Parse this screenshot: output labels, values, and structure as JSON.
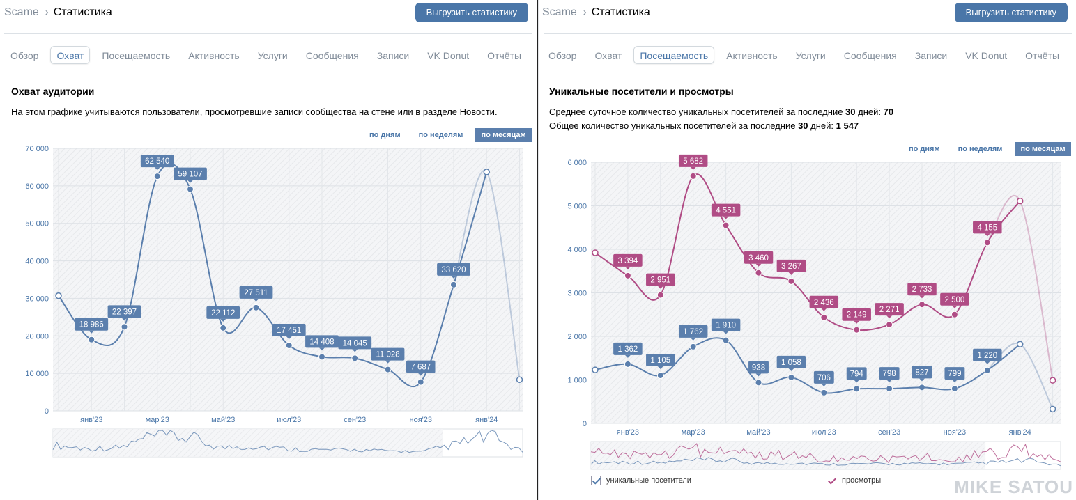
{
  "left": {
    "breadcrumb": {
      "root": "Scame",
      "current": "Статистика"
    },
    "export_label": "Выгрузить статистику",
    "tabs": [
      {
        "label": "Обзор",
        "active": false
      },
      {
        "label": "Охват",
        "active": true
      },
      {
        "label": "Посещаемость",
        "active": false
      },
      {
        "label": "Активность",
        "active": false
      },
      {
        "label": "Услуги",
        "active": false
      },
      {
        "label": "Сообщения",
        "active": false
      },
      {
        "label": "Записи",
        "active": false
      },
      {
        "label": "VK Donut",
        "active": false
      },
      {
        "label": "Отчёты",
        "active": false
      }
    ],
    "section_title": "Охват аудитории",
    "section_desc": "На этом графике учитываются пользователи, просмотревшие записи сообщества на стене или в разделе Новости.",
    "periods": [
      {
        "label": "по дням",
        "active": false
      },
      {
        "label": "по неделям",
        "active": false
      },
      {
        "label": "по месяцам",
        "active": true
      }
    ]
  },
  "right": {
    "breadcrumb": {
      "root": "Scame",
      "current": "Статистика"
    },
    "export_label": "Выгрузить статистику",
    "tabs": [
      {
        "label": "Обзор",
        "active": false
      },
      {
        "label": "Охват",
        "active": false
      },
      {
        "label": "Посещаемость",
        "active": true
      },
      {
        "label": "Активность",
        "active": false
      },
      {
        "label": "Услуги",
        "active": false
      },
      {
        "label": "Сообщения",
        "active": false
      },
      {
        "label": "Записи",
        "active": false
      },
      {
        "label": "VK Donut",
        "active": false
      },
      {
        "label": "Отчёты",
        "active": false
      }
    ],
    "section_title": "Уникальные посетители и просмотры",
    "avg_line": {
      "prefix": "Среднее суточное количество уникальных посетителей за последние ",
      "days": "30",
      "mid": " дней: ",
      "value": "70"
    },
    "total_line": {
      "prefix": "Общее количество уникальных посетителей за последние ",
      "days": "30",
      "mid": " дней: ",
      "value": "1 547"
    },
    "periods": [
      {
        "label": "по дням",
        "active": false
      },
      {
        "label": "по неделям",
        "active": false
      },
      {
        "label": "по месяцам",
        "active": true
      }
    ],
    "legend": [
      {
        "label": "уникальные посетители",
        "color": "#4a76a8"
      },
      {
        "label": "просмотры",
        "color": "#b04c85"
      }
    ]
  },
  "watermark": "MIKE SATOU",
  "chart_data": [
    {
      "type": "line",
      "x": [
        "дек'22",
        "янв'23",
        "фев'23",
        "мар'23",
        "апр'23",
        "май'23",
        "июн'23",
        "июл'23",
        "авг'23",
        "сен'23",
        "окт'23",
        "ноя'23",
        "дек'23",
        "янв'24",
        "фев'24"
      ],
      "x_tick_labels": [
        "янв'23",
        "мар'23",
        "май'23",
        "июл'23",
        "сен'23",
        "ноя'23",
        "янв'24"
      ],
      "y_tick_labels": [
        "0",
        "10 000",
        "20 000",
        "30 000",
        "40 000",
        "50 000",
        "60 000",
        "70 000"
      ],
      "ylim": [
        0,
        70000
      ],
      "series": [
        {
          "name": "",
          "color": "#5b7fad",
          "values": [
            30700,
            18986,
            22397,
            62540,
            59107,
            22112,
            27511,
            17451,
            14408,
            14045,
            11028,
            7687,
            33620,
            63700,
            8300
          ],
          "labels": [
            "",
            "18 986",
            "22 397",
            "62 540",
            "59 107",
            "22 112",
            "27 511",
            "17 451",
            "14 408",
            "14 045",
            "11 028",
            "7 687",
            "33 620",
            "",
            ""
          ],
          "hollow": [
            true,
            false,
            false,
            false,
            false,
            false,
            false,
            false,
            false,
            false,
            false,
            false,
            false,
            true,
            true
          ]
        }
      ],
      "grid": true
    },
    {
      "type": "line",
      "x": [
        "дек'22",
        "янв'23",
        "фев'23",
        "мар'23",
        "апр'23",
        "май'23",
        "июн'23",
        "июл'23",
        "авг'23",
        "сен'23",
        "окт'23",
        "ноя'23",
        "дек'23",
        "янв'24",
        "фев'24"
      ],
      "x_tick_labels": [
        "янв'23",
        "мар'23",
        "май'23",
        "июл'23",
        "сен'23",
        "ноя'23",
        "янв'24"
      ],
      "y_tick_labels": [
        "0",
        "1 000",
        "2 000",
        "3 000",
        "4 000",
        "5 000",
        "6 000"
      ],
      "ylim": [
        0,
        6000
      ],
      "series": [
        {
          "name": "уникальные посетители",
          "color": "#5b7fad",
          "values": [
            1230,
            1362,
            1105,
            1762,
            1910,
            938,
            1058,
            706,
            794,
            798,
            827,
            799,
            1220,
            1820,
            330
          ],
          "labels": [
            "",
            "1 362",
            "1 105",
            "1 762",
            "1 910",
            "938",
            "1 058",
            "706",
            "794",
            "798",
            "827",
            "799",
            "1 220",
            "",
            ""
          ],
          "hollow": [
            true,
            false,
            false,
            false,
            false,
            false,
            false,
            false,
            false,
            false,
            false,
            false,
            false,
            true,
            true
          ]
        },
        {
          "name": "просмотры",
          "color": "#b04c85",
          "values": [
            3920,
            3394,
            2951,
            5682,
            4551,
            3460,
            3267,
            2436,
            2149,
            2271,
            2733,
            2500,
            4155,
            5110,
            990
          ],
          "labels": [
            "",
            "3 394",
            "2 951",
            "5 682",
            "4 551",
            "3 460",
            "3 267",
            "2 436",
            "2 149",
            "2 271",
            "2 733",
            "2 500",
            "4 155",
            "",
            ""
          ],
          "hollow": [
            true,
            false,
            false,
            false,
            false,
            false,
            false,
            false,
            false,
            false,
            false,
            false,
            false,
            true,
            true
          ]
        }
      ],
      "legend": "bottom",
      "grid": true
    }
  ]
}
